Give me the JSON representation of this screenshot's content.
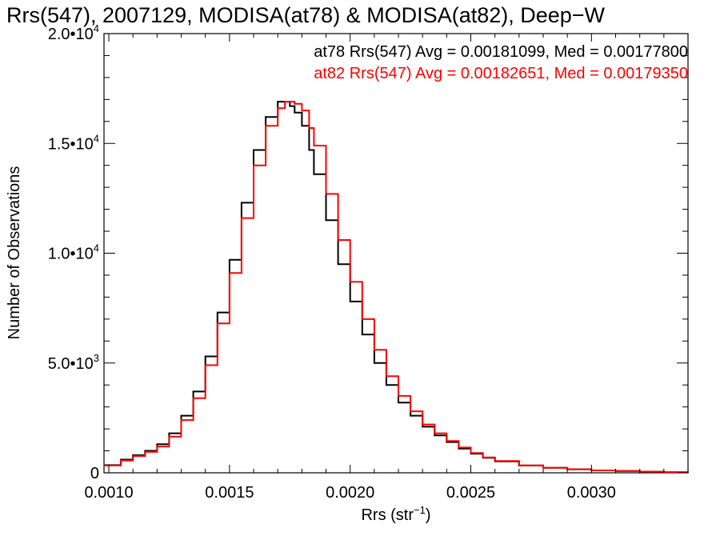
{
  "chart_data": {
    "type": "line",
    "title": "Rrs(547), 2007129, MODISA(at78) & MODISA(at82), Deep−W",
    "xlabel": "Rrs (str",
    "xlabel_sup": "−1",
    "xlabel_close": ")",
    "ylabel": "Number of Observations",
    "xlim": [
      0.00098,
      0.0034
    ],
    "ylim": [
      0,
      20000
    ],
    "x_ticks": [
      {
        "value": 0.001,
        "label": "0.0010"
      },
      {
        "value": 0.0015,
        "label": "0.0015"
      },
      {
        "value": 0.002,
        "label": "0.0020"
      },
      {
        "value": 0.0025,
        "label": "0.0025"
      },
      {
        "value": 0.003,
        "label": "0.0030"
      }
    ],
    "y_ticks": [
      {
        "value": 0,
        "mantissa": "0",
        "exp": ""
      },
      {
        "value": 5000,
        "mantissa": "5.0•10",
        "exp": "3"
      },
      {
        "value": 10000,
        "mantissa": "1.0•10",
        "exp": "4"
      },
      {
        "value": 15000,
        "mantissa": "1.5•10",
        "exp": "4"
      },
      {
        "value": 20000,
        "mantissa": "2.0•10",
        "exp": "4"
      }
    ],
    "legend_position": "top-right",
    "series": [
      {
        "name": "at78 Rrs(547) Avg = 0.00181099, Med = 0.00177800",
        "color": "#000000",
        "x": [
          0.00098,
          0.00105,
          0.0011,
          0.00115,
          0.0012,
          0.00125,
          0.0013,
          0.00135,
          0.0014,
          0.00145,
          0.0015,
          0.00155,
          0.0016,
          0.00165,
          0.0017,
          0.00173,
          0.00175,
          0.00177,
          0.0018,
          0.00183,
          0.00185,
          0.0019,
          0.00195,
          0.002,
          0.00205,
          0.0021,
          0.00215,
          0.0022,
          0.00225,
          0.0023,
          0.00235,
          0.0024,
          0.00245,
          0.0025,
          0.00255,
          0.0026,
          0.0027,
          0.0028,
          0.0029,
          0.003,
          0.0031,
          0.0032,
          0.0033,
          0.0034
        ],
        "y": [
          350,
          600,
          800,
          1000,
          1300,
          1800,
          2600,
          3700,
          5300,
          7300,
          9700,
          12300,
          14700,
          16200,
          16900,
          16900,
          16700,
          16400,
          15800,
          14700,
          13600,
          11500,
          9500,
          7800,
          6300,
          5000,
          4000,
          3200,
          2600,
          2100,
          1700,
          1400,
          1100,
          870,
          680,
          520,
          330,
          230,
          160,
          110,
          80,
          50,
          30,
          10
        ]
      },
      {
        "name": "at82 Rrs(547) Avg = 0.00182651, Med = 0.00179350",
        "color": "#ff0000",
        "x": [
          0.00098,
          0.00105,
          0.0011,
          0.00115,
          0.0012,
          0.00125,
          0.0013,
          0.00135,
          0.0014,
          0.00145,
          0.0015,
          0.00155,
          0.0016,
          0.00165,
          0.0017,
          0.00173,
          0.00175,
          0.00177,
          0.0018,
          0.00183,
          0.00185,
          0.0019,
          0.00195,
          0.002,
          0.00205,
          0.0021,
          0.00215,
          0.0022,
          0.00225,
          0.0023,
          0.00235,
          0.0024,
          0.00245,
          0.0025,
          0.00255,
          0.0026,
          0.0027,
          0.0028,
          0.0029,
          0.003,
          0.0031,
          0.0032,
          0.0033,
          0.0034
        ],
        "y": [
          330,
          560,
          760,
          950,
          1200,
          1650,
          2400,
          3400,
          4900,
          6800,
          9100,
          11600,
          14000,
          15800,
          16600,
          16900,
          16900,
          16800,
          16500,
          15700,
          14900,
          12700,
          10600,
          8700,
          7000,
          5600,
          4400,
          3500,
          2800,
          2200,
          1800,
          1450,
          1150,
          900,
          700,
          540,
          340,
          230,
          160,
          110,
          80,
          50,
          30,
          10
        ]
      }
    ]
  }
}
